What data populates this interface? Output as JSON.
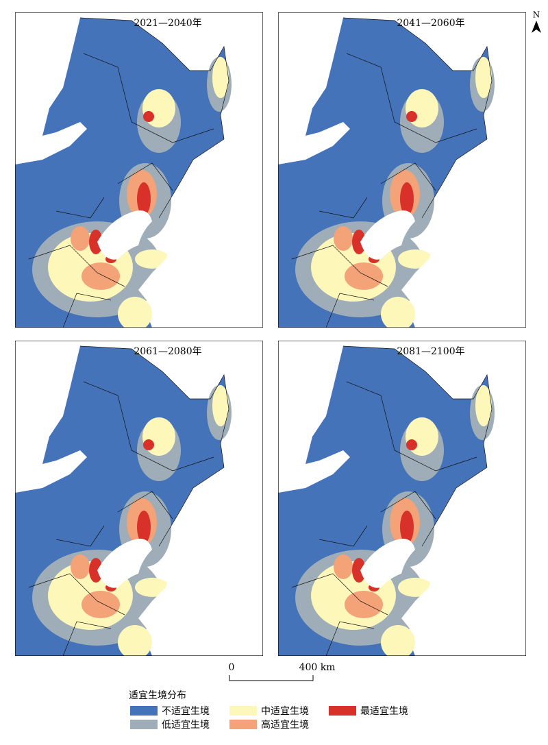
{
  "panels": [
    {
      "title": "2021—2040年"
    },
    {
      "title": "2041—2060年"
    },
    {
      "title": "2061—2080年"
    },
    {
      "title": "2081—2100年"
    }
  ],
  "north": "N",
  "scale_bar": {
    "labels": [
      "0",
      "400 km"
    ]
  },
  "legend": {
    "title": "适宜生境分布",
    "items": [
      {
        "label": "不适宜生境",
        "color": "#4473b9"
      },
      {
        "label": "低适宜生境",
        "color": "#9eadb8"
      },
      {
        "label": "中适宜生境",
        "color": "#fdf8b9"
      },
      {
        "label": "高适宜生境",
        "color": "#f4a277"
      },
      {
        "label": "最适宜生境",
        "color": "#d8312a"
      }
    ]
  }
}
